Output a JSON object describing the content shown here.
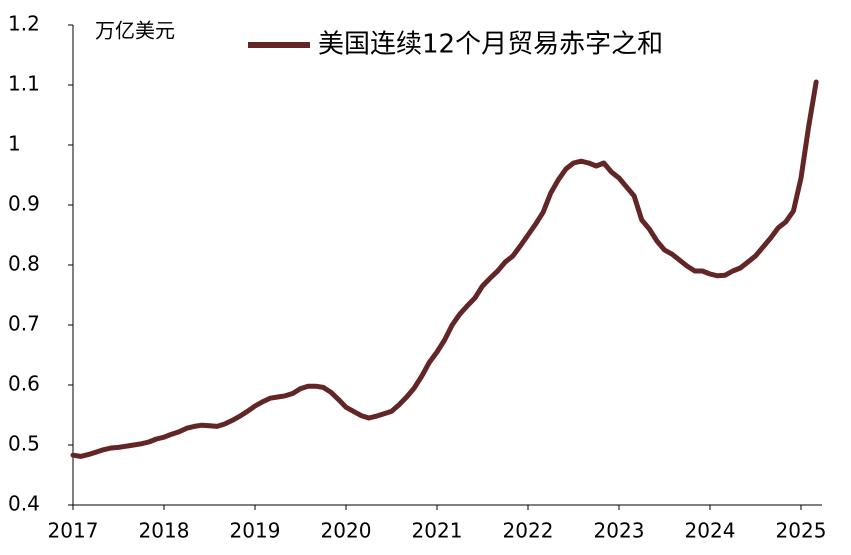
{
  "chart_data": {
    "type": "line",
    "y_label": "万亿美元",
    "categories": [
      "2017",
      null,
      null,
      null,
      null,
      null,
      null,
      null,
      null,
      null,
      null,
      null,
      "2018",
      null,
      null,
      null,
      null,
      null,
      null,
      null,
      null,
      null,
      null,
      null,
      "2019",
      null,
      null,
      null,
      null,
      null,
      null,
      null,
      null,
      null,
      null,
      null,
      "2020",
      null,
      null,
      null,
      null,
      null,
      null,
      null,
      null,
      null,
      null,
      null,
      "2021",
      null,
      null,
      null,
      null,
      null,
      null,
      null,
      null,
      null,
      null,
      null,
      "2022",
      null,
      null,
      null,
      null,
      null,
      null,
      null,
      null,
      null,
      null,
      null,
      "2023",
      null,
      null,
      null,
      null,
      null,
      null,
      null,
      null,
      null,
      null,
      null,
      "2024",
      null,
      null,
      null,
      null,
      null,
      null,
      null,
      null,
      null,
      null,
      null,
      "2025",
      null,
      null
    ],
    "series": [
      {
        "name": "美国连续12个月贸易赤字之和",
        "color": "#632626",
        "values": [
          0.483,
          0.481,
          0.484,
          0.488,
          0.492,
          0.495,
          0.496,
          0.498,
          0.5,
          0.502,
          0.505,
          0.51,
          0.513,
          0.518,
          0.522,
          0.528,
          0.531,
          0.533,
          0.532,
          0.531,
          0.535,
          0.541,
          0.548,
          0.556,
          0.565,
          0.572,
          0.578,
          0.58,
          0.582,
          0.586,
          0.594,
          0.598,
          0.598,
          0.596,
          0.588,
          0.576,
          0.563,
          0.556,
          0.549,
          0.545,
          0.548,
          0.552,
          0.556,
          0.567,
          0.58,
          0.595,
          0.615,
          0.638,
          0.655,
          0.675,
          0.7,
          0.718,
          0.732,
          0.745,
          0.765,
          0.778,
          0.79,
          0.805,
          0.815,
          0.832,
          0.85,
          0.868,
          0.888,
          0.92,
          0.942,
          0.96,
          0.97,
          0.973,
          0.97,
          0.965,
          0.97,
          0.955,
          0.945,
          0.93,
          0.915,
          0.875,
          0.86,
          0.84,
          0.825,
          0.818,
          0.808,
          0.798,
          0.79,
          0.79,
          0.785,
          0.782,
          0.783,
          0.79,
          0.795,
          0.805,
          0.815,
          0.83,
          0.845,
          0.862,
          0.872,
          0.89,
          0.945,
          1.03,
          1.105
        ]
      }
    ],
    "ylim": [
      0.4,
      1.2
    ],
    "yticks": [
      0.4,
      0.5,
      0.6,
      0.7,
      0.8,
      0.9,
      1,
      1.1,
      1.2
    ]
  }
}
